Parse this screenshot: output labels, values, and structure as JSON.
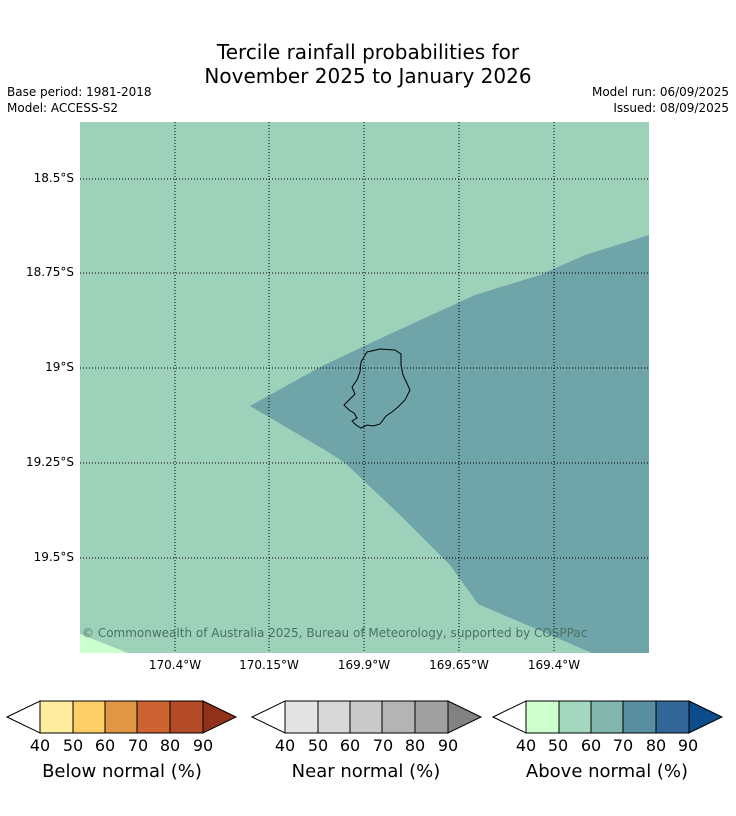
{
  "title_line1": "Tercile rainfall probabilities for",
  "title_line2": "November 2025 to January 2026",
  "meta": {
    "base_period": "Base period: 1981-2018",
    "model": "Model: ACCESS-S2",
    "model_run": "Model run: 06/09/2025",
    "issued": "Issued: 08/09/2025"
  },
  "map": {
    "lat_labels": [
      "18.5°S",
      "18.75°S",
      "19°S",
      "19.25°S",
      "19.5°S"
    ],
    "lon_labels": [
      "170.4°W",
      "170.15°W",
      "169.9°W",
      "169.65°W",
      "169.4°W"
    ],
    "background_category": "Above normal 50-60%",
    "region_category": "Above normal 70-80%",
    "corner_category": "Above normal 40-50%",
    "colors": {
      "bg": "#9ed1ba",
      "region": "#6fa5a8",
      "corner": "#ccffcc"
    },
    "copyright": "© Commonwealth of Australia 2025, Bureau of Meteorology, supported by COSPPac"
  },
  "colorbars": [
    {
      "title": "Below normal (%)",
      "colors": [
        "#ffffff",
        "#ffed9f",
        "#fdcd66",
        "#e19644",
        "#cd6232",
        "#b24b26",
        "#913119"
      ]
    },
    {
      "title": "Near normal (%)",
      "colors": [
        "#ffffff",
        "#e4e4e4",
        "#d8d8d8",
        "#c9c9c9",
        "#b4b4b4",
        "#a0a0a0",
        "#828282"
      ]
    },
    {
      "title": "Above normal (%)",
      "colors": [
        "#ffffff",
        "#ccffcc",
        "#a3d7bf",
        "#81b6aa",
        "#588e9f",
        "#326698",
        "#0d4c8a"
      ]
    }
  ],
  "ticks": [
    "40",
    "50",
    "60",
    "70",
    "80",
    "90"
  ]
}
